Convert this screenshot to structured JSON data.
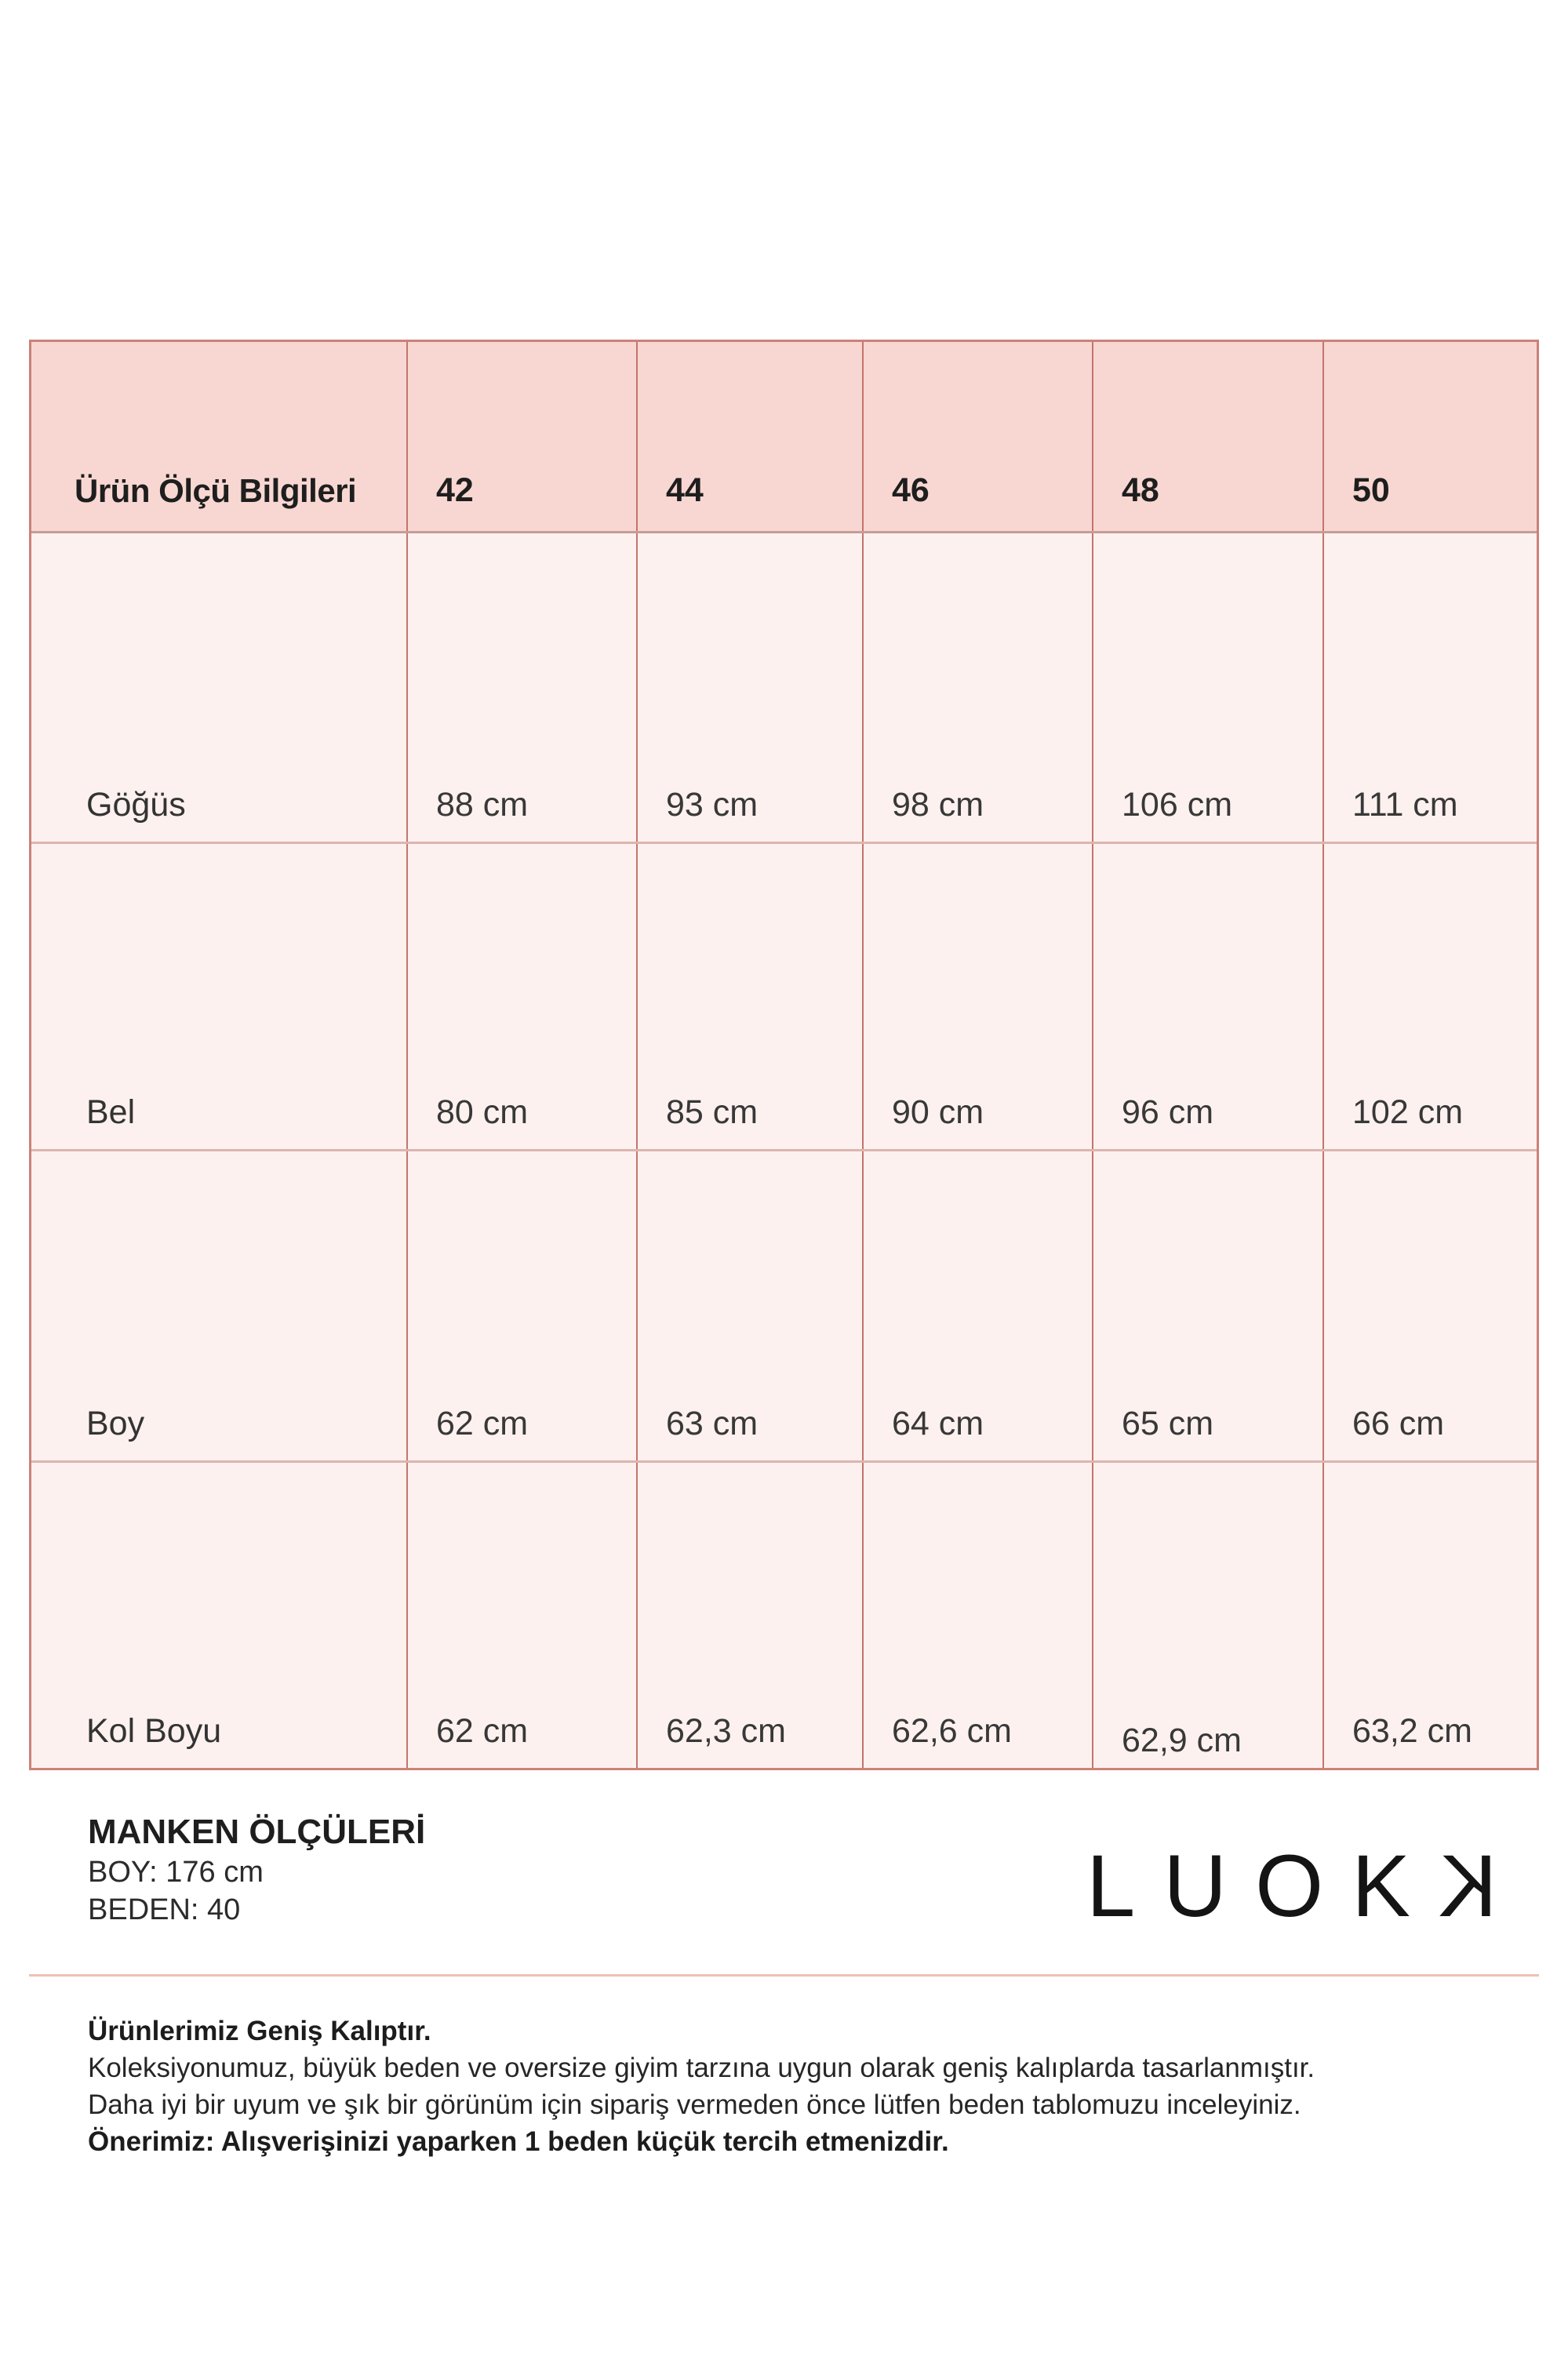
{
  "table": {
    "header": {
      "label": "Ürün Ölçü Bilgileri",
      "sizes": [
        "42",
        "44",
        "46",
        "48",
        "50"
      ]
    },
    "rows": [
      {
        "label": "Göğüs",
        "values": [
          "88 cm",
          "93 cm",
          "98 cm",
          "106 cm",
          "111 cm"
        ]
      },
      {
        "label": "Bel",
        "values": [
          "80 cm",
          "85 cm",
          "90 cm",
          "96 cm",
          "102 cm"
        ]
      },
      {
        "label": "Boy",
        "values": [
          "62 cm",
          "63 cm",
          "64 cm",
          "65 cm",
          "66 cm"
        ]
      },
      {
        "label": "Kol Boyu",
        "values": [
          "62 cm",
          "62,3 cm",
          "62,6 cm",
          "62,9 cm",
          "63,2 cm"
        ]
      }
    ]
  },
  "model_info": {
    "title": "MANKEN ÖLÇÜLERİ",
    "height_line": "BOY: 176 cm",
    "size_line": "BEDEN: 40"
  },
  "brand": {
    "logo_text": "LUOK",
    "logo_mirrored_letter": "K"
  },
  "fit_notes": {
    "heading": "Ürünlerimiz Geniş Kalıptır.",
    "line1": "Koleksiyonumuz, büyük beden ve oversize giyim tarzına uygun olarak geniş kalıplarda tasarlanmıştır.",
    "line2": "Daha iyi bir uyum ve şık bir görünüm için sipariş vermeden önce lütfen beden tablomuzu inceleyiniz.",
    "recommendation": "Önerimiz: Alışverişinizi yaparken 1 beden küçük tercih etmenizdir."
  },
  "colors": {
    "header_bg": "#f8d7d2",
    "cell_bg": "#fdf1ef",
    "outer_border": "#cc8179",
    "column_line": "#c3756c",
    "row_line": "#dcb5b0",
    "footer_line": "#eec2b6"
  }
}
